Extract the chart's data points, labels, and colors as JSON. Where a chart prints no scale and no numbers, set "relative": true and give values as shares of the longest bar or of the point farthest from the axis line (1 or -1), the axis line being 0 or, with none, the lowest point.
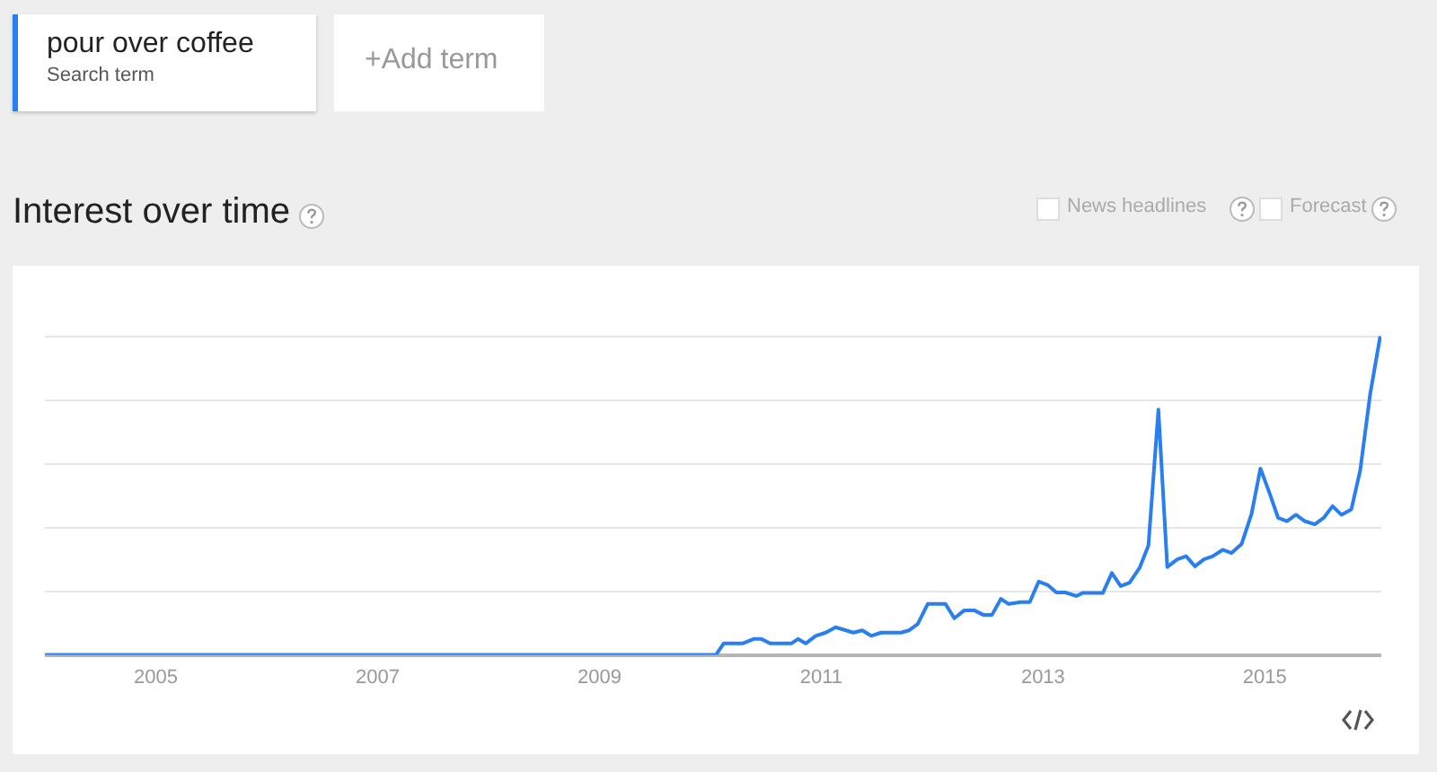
{
  "chart_data": {
    "type": "line",
    "title": "Interest over time",
    "relative": true,
    "grid": "y",
    "legend": "top left",
    "annotations": [
      "Search term",
      "+Add term",
      "News headlines",
      "Forecast"
    ],
    "xlim": [
      2004,
      2016.05
    ],
    "xticks": [
      2005,
      2007,
      2009,
      2011,
      2013,
      2015
    ],
    "series": [
      {
        "name": "pour over coffee",
        "color": "#2a7ff0",
        "x": [
          2004.0,
          2010.05,
          2010.12,
          2010.29,
          2010.39,
          2010.46,
          2010.54,
          2010.73,
          2010.79,
          2010.86,
          2010.95,
          2011.04,
          2011.13,
          2011.29,
          2011.37,
          2011.45,
          2011.54,
          2011.72,
          2011.79,
          2011.87,
          2011.96,
          2012.12,
          2012.2,
          2012.29,
          2012.38,
          2012.46,
          2012.54,
          2012.62,
          2012.69,
          2012.8,
          2012.88,
          2012.96,
          2013.04,
          2013.12,
          2013.2,
          2013.3,
          2013.36,
          2013.54,
          2013.62,
          2013.7,
          2013.78,
          2013.87,
          2013.95,
          2014.04,
          2014.12,
          2014.21,
          2014.29,
          2014.37,
          2014.45,
          2014.53,
          2014.62,
          2014.7,
          2014.79,
          2014.88,
          2014.96,
          2015.04,
          2015.12,
          2015.2,
          2015.28,
          2015.36,
          2015.45,
          2015.53,
          2015.61,
          2015.69,
          2015.78,
          2015.86,
          2015.95,
          2016.04
        ],
        "values": [
          0,
          0,
          0.036,
          0.036,
          0.05,
          0.05,
          0.036,
          0.036,
          0.05,
          0.036,
          0.06,
          0.07,
          0.087,
          0.07,
          0.077,
          0.06,
          0.07,
          0.07,
          0.077,
          0.097,
          0.16,
          0.16,
          0.115,
          0.14,
          0.14,
          0.126,
          0.126,
          0.176,
          0.16,
          0.166,
          0.166,
          0.23,
          0.22,
          0.196,
          0.196,
          0.185,
          0.195,
          0.195,
          0.257,
          0.216,
          0.227,
          0.273,
          0.343,
          0.77,
          0.276,
          0.3,
          0.31,
          0.278,
          0.3,
          0.31,
          0.33,
          0.32,
          0.348,
          0.443,
          0.585,
          0.51,
          0.43,
          0.42,
          0.44,
          0.42,
          0.41,
          0.43,
          0.467,
          0.44,
          0.457,
          0.58,
          0.82,
          1.0
        ]
      }
    ]
  }
}
